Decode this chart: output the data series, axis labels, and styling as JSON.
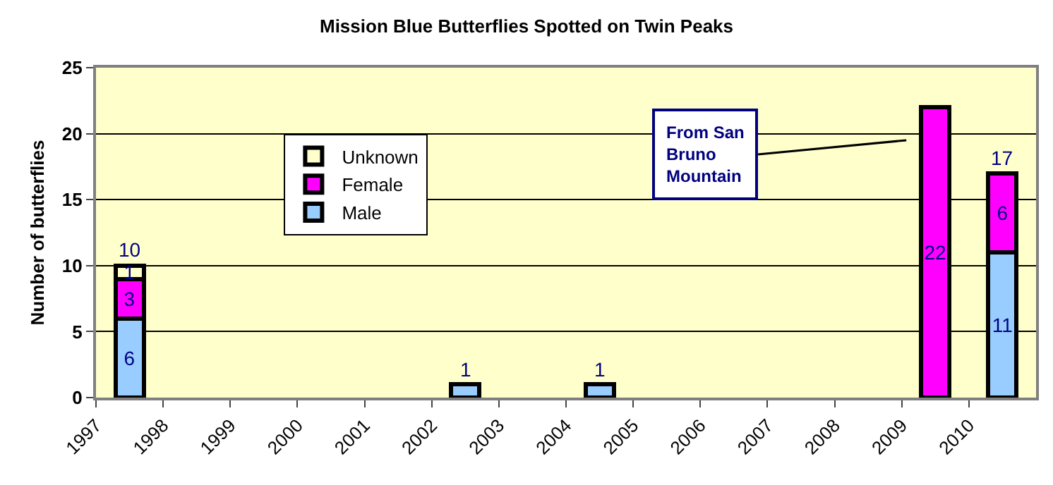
{
  "chart_data": {
    "type": "bar",
    "title": "Mission Blue Butterflies Spotted on Twin Peaks",
    "ylabel": "Number of butterflies",
    "categories": [
      "1997",
      "1998",
      "1999",
      "2000",
      "2001",
      "2002",
      "2003",
      "2004",
      "2005",
      "2006",
      "2007",
      "2008",
      "2009",
      "2010"
    ],
    "stacked": true,
    "series": [
      {
        "name": "Male",
        "color": "#99ccff",
        "values": [
          6,
          null,
          null,
          null,
          null,
          1,
          null,
          1,
          null,
          null,
          null,
          null,
          null,
          11
        ],
        "value_labels": [
          "6",
          null,
          null,
          null,
          null,
          null,
          null,
          null,
          null,
          null,
          null,
          null,
          null,
          "11"
        ]
      },
      {
        "name": "Female",
        "color": "#ff00ff",
        "values": [
          3,
          null,
          null,
          null,
          null,
          null,
          null,
          null,
          null,
          null,
          null,
          null,
          22,
          6
        ],
        "value_labels": [
          "3",
          null,
          null,
          null,
          null,
          null,
          null,
          null,
          null,
          null,
          null,
          null,
          "22",
          "6"
        ]
      },
      {
        "name": "Unknown",
        "color": "#ffffcc",
        "values": [
          1,
          null,
          null,
          null,
          null,
          null,
          null,
          null,
          null,
          null,
          null,
          null,
          null,
          null
        ],
        "value_labels": [
          "1",
          null,
          null,
          null,
          null,
          null,
          null,
          null,
          null,
          null,
          null,
          null,
          null,
          null
        ]
      }
    ],
    "totals": [
      "10",
      null,
      null,
      null,
      null,
      "1",
      null,
      "1",
      null,
      null,
      null,
      null,
      null,
      "17"
    ],
    "ylim": [
      0,
      25
    ],
    "yticks": [
      0,
      5,
      10,
      15,
      20,
      25
    ],
    "grid": "y",
    "legend": "top left",
    "annotations": [
      "From San\nBruno\nMountain"
    ]
  }
}
